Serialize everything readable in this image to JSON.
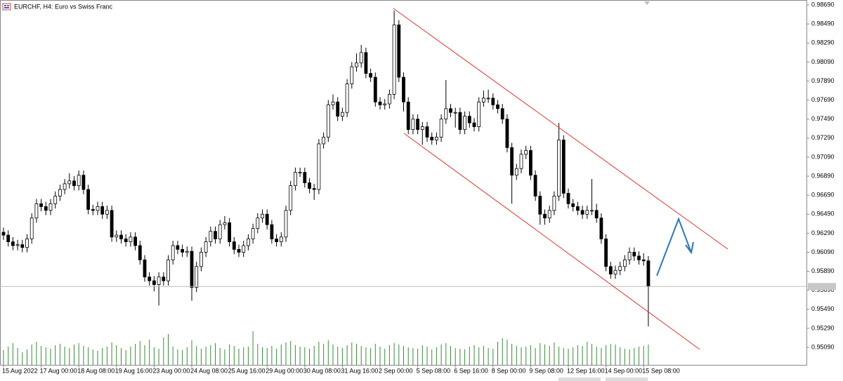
{
  "chart_data": {
    "type": "candlestick",
    "title": "EURCHF, H4:  Euro vs Swiss Franc",
    "categories": [
      "15 Aug 2022",
      null,
      null,
      null,
      null,
      null,
      null,
      null,
      "17 Aug 00:00",
      null,
      null,
      null,
      null,
      null,
      null,
      null,
      "18 Aug 08:00",
      null,
      null,
      null,
      null,
      null,
      null,
      null,
      "19 Aug 16:00",
      null,
      null,
      null,
      null,
      null,
      null,
      null,
      "23 Aug 00:00",
      null,
      null,
      null,
      null,
      null,
      null,
      null,
      "24 Aug 08:00",
      null,
      null,
      null,
      null,
      null,
      null,
      null,
      "25 Aug 16:00",
      null,
      null,
      null,
      null,
      null,
      null,
      null,
      "29 Aug 00:00",
      null,
      null,
      null,
      null,
      null,
      null,
      null,
      "30 Aug 08:00",
      null,
      null,
      null,
      null,
      null,
      null,
      null,
      "31 Aug 16:00",
      null,
      null,
      null,
      null,
      null,
      null,
      null,
      "2 Sep 00:00",
      null,
      null,
      null,
      null,
      null,
      null,
      null,
      "5 Sep 08:00",
      null,
      null,
      null,
      null,
      null,
      null,
      null,
      "6 Sep 16:00",
      null,
      null,
      null,
      null,
      null,
      null,
      null,
      "8 Sep 00:00",
      null,
      null,
      null,
      null,
      null,
      null,
      null,
      "9 Sep 08:00",
      null,
      null,
      null,
      null,
      null,
      null,
      null,
      "12 Sep 16:00",
      null,
      null,
      null,
      null,
      null,
      null,
      null,
      "14 Sep 00:00",
      null,
      null,
      null,
      null,
      null,
      null,
      null,
      "15 Sep 08:00",
      null
    ],
    "open": [
      0.963,
      0.9627,
      0.962,
      0.9616,
      0.9617,
      0.9614,
      0.9623,
      0.9645,
      0.966,
      0.9657,
      0.9653,
      0.966,
      0.9668,
      0.9675,
      0.9681,
      0.9684,
      0.9679,
      0.969,
      0.9675,
      0.9654,
      0.9653,
      0.9657,
      0.9649,
      0.9653,
      0.9625,
      0.9627,
      0.9623,
      0.962,
      0.9625,
      0.9616,
      0.9601,
      0.9583,
      0.9579,
      0.9575,
      0.9583,
      0.9579,
      0.9601,
      0.9616,
      0.9612,
      0.9609,
      0.961,
      0.9572,
      0.9594,
      0.9609,
      0.962,
      0.9631,
      0.9623,
      0.9638,
      0.964,
      0.962,
      0.9612,
      0.9609,
      0.9616,
      0.9623,
      0.9634,
      0.9645,
      0.9649,
      0.9638,
      0.9623,
      0.962,
      0.9625,
      0.9653,
      0.9679,
      0.9693,
      0.9693,
      0.9682,
      0.9676,
      0.9675,
      0.9723,
      0.973,
      0.9764,
      0.9767,
      0.9752,
      0.9756,
      0.9786,
      0.9804,
      0.9808,
      0.9819,
      0.9797,
      0.9793,
      0.9767,
      0.9764,
      0.9765,
      0.9775,
      0.9848,
      0.9793,
      0.9767,
      0.9738,
      0.9749,
      0.9738,
      0.9741,
      0.973,
      0.9727,
      0.973,
      0.9749,
      0.976,
      0.9756,
      0.9756,
      0.9738,
      0.9752,
      0.9745,
      0.9741,
      0.9767,
      0.9771,
      0.9771,
      0.9764,
      0.976,
      0.9749,
      0.9719,
      0.969,
      0.9697,
      0.9712,
      0.9716,
      0.969,
      0.9668,
      0.9649,
      0.9645,
      0.9653,
      0.9668,
      0.9727,
      0.9671,
      0.966,
      0.9657,
      0.9653,
      0.9649,
      0.9653,
      0.9653,
      0.9645,
      0.9623,
      0.9594,
      0.9586,
      0.959,
      0.9594,
      0.9601,
      0.9609,
      0.9605,
      0.9601,
      0.96
    ],
    "high": [
      0.9635,
      0.9632,
      0.9625,
      0.9622,
      0.9622,
      0.9628,
      0.965,
      0.9665,
      0.9665,
      0.9662,
      0.9665,
      0.9673,
      0.968,
      0.9686,
      0.9692,
      0.9689,
      0.9695,
      0.9695,
      0.968,
      0.9659,
      0.9662,
      0.9662,
      0.9658,
      0.9658,
      0.9632,
      0.9632,
      0.9628,
      0.963,
      0.963,
      0.9621,
      0.9606,
      0.9588,
      0.9584,
      0.9588,
      0.9588,
      0.9606,
      0.9621,
      0.9621,
      0.9617,
      0.9615,
      0.9615,
      0.9599,
      0.9614,
      0.9625,
      0.9636,
      0.9636,
      0.9643,
      0.9647,
      0.9645,
      0.9625,
      0.9617,
      0.9621,
      0.9628,
      0.9639,
      0.965,
      0.9654,
      0.9654,
      0.9643,
      0.9628,
      0.963,
      0.9658,
      0.9684,
      0.9698,
      0.9698,
      0.9698,
      0.9687,
      0.9681,
      0.9728,
      0.9735,
      0.9769,
      0.9775,
      0.9772,
      0.9761,
      0.9791,
      0.9809,
      0.9818,
      0.9827,
      0.9824,
      0.9802,
      0.9798,
      0.9772,
      0.977,
      0.978,
      0.9863,
      0.9853,
      0.9798,
      0.9772,
      0.9754,
      0.9754,
      0.9746,
      0.9746,
      0.9735,
      0.9735,
      0.9754,
      0.979,
      0.9765,
      0.9761,
      0.9761,
      0.9757,
      0.9757,
      0.975,
      0.9772,
      0.9779,
      0.978,
      0.9776,
      0.9769,
      0.9765,
      0.9754,
      0.9724,
      0.9702,
      0.9717,
      0.9721,
      0.9721,
      0.9695,
      0.9673,
      0.9654,
      0.9658,
      0.9673,
      0.9745,
      0.9732,
      0.9676,
      0.9665,
      0.9662,
      0.9658,
      0.9658,
      0.9686,
      0.966,
      0.965,
      0.9628,
      0.9599,
      0.9595,
      0.9599,
      0.9606,
      0.9614,
      0.9614,
      0.961,
      0.9608,
      0.9605
    ],
    "low": [
      0.9622,
      0.9615,
      0.9611,
      0.9611,
      0.9609,
      0.9609,
      0.9618,
      0.964,
      0.9652,
      0.9648,
      0.9648,
      0.9655,
      0.9663,
      0.967,
      0.9676,
      0.9674,
      0.9674,
      0.967,
      0.9649,
      0.9648,
      0.9648,
      0.9644,
      0.9644,
      0.962,
      0.962,
      0.9618,
      0.9615,
      0.9615,
      0.9611,
      0.9596,
      0.9578,
      0.9574,
      0.9568,
      0.9553,
      0.9574,
      0.9574,
      0.9596,
      0.9607,
      0.9604,
      0.9604,
      0.9558,
      0.9567,
      0.9589,
      0.9604,
      0.9615,
      0.9618,
      0.9618,
      0.9633,
      0.9615,
      0.9607,
      0.9604,
      0.9604,
      0.9611,
      0.9618,
      0.9629,
      0.964,
      0.9633,
      0.9618,
      0.9615,
      0.9615,
      0.962,
      0.9648,
      0.9674,
      0.9688,
      0.9677,
      0.9671,
      0.9664,
      0.967,
      0.9718,
      0.9725,
      0.9759,
      0.9747,
      0.9747,
      0.9751,
      0.9781,
      0.9799,
      0.9803,
      0.9792,
      0.9788,
      0.9762,
      0.9759,
      0.9759,
      0.976,
      0.977,
      0.9788,
      0.9757,
      0.9733,
      0.9733,
      0.9733,
      0.9722,
      0.9725,
      0.9722,
      0.9722,
      0.9725,
      0.9744,
      0.9751,
      0.974,
      0.9733,
      0.9733,
      0.974,
      0.9736,
      0.9736,
      0.9762,
      0.9766,
      0.9759,
      0.9755,
      0.9744,
      0.9714,
      0.966,
      0.9685,
      0.9692,
      0.9707,
      0.9685,
      0.9663,
      0.9638,
      0.9638,
      0.964,
      0.9648,
      0.9663,
      0.9666,
      0.9655,
      0.9652,
      0.9648,
      0.9644,
      0.9644,
      0.9648,
      0.964,
      0.9618,
      0.9589,
      0.9581,
      0.9581,
      0.9585,
      0.9589,
      0.9596,
      0.96,
      0.9596,
      0.9595,
      0.9531
    ],
    "close": [
      0.9627,
      0.962,
      0.9616,
      0.9617,
      0.9614,
      0.9623,
      0.9645,
      0.966,
      0.9657,
      0.9653,
      0.966,
      0.9668,
      0.9675,
      0.9681,
      0.9684,
      0.9679,
      0.969,
      0.9675,
      0.9654,
      0.9653,
      0.9657,
      0.9649,
      0.9653,
      0.9625,
      0.9627,
      0.9623,
      0.962,
      0.9625,
      0.9616,
      0.9601,
      0.9583,
      0.9579,
      0.9575,
      0.9583,
      0.9579,
      0.9601,
      0.9616,
      0.9612,
      0.9609,
      0.961,
      0.9572,
      0.9594,
      0.9609,
      0.962,
      0.9631,
      0.9623,
      0.9638,
      0.964,
      0.962,
      0.9612,
      0.9609,
      0.9616,
      0.9623,
      0.9634,
      0.9645,
      0.9649,
      0.9638,
      0.9623,
      0.962,
      0.9625,
      0.9653,
      0.9679,
      0.9693,
      0.9693,
      0.9682,
      0.9676,
      0.9675,
      0.9723,
      0.973,
      0.9764,
      0.9767,
      0.9752,
      0.9756,
      0.9786,
      0.9804,
      0.9808,
      0.9819,
      0.9797,
      0.9793,
      0.9767,
      0.9764,
      0.9765,
      0.9775,
      0.9848,
      0.9793,
      0.9767,
      0.9738,
      0.9749,
      0.9738,
      0.9741,
      0.973,
      0.9727,
      0.973,
      0.9749,
      0.976,
      0.9756,
      0.9756,
      0.9738,
      0.9752,
      0.9745,
      0.9741,
      0.9767,
      0.9771,
      0.9771,
      0.9764,
      0.976,
      0.9749,
      0.9719,
      0.969,
      0.9697,
      0.9712,
      0.9716,
      0.969,
      0.9668,
      0.9649,
      0.9645,
      0.9653,
      0.9668,
      0.9727,
      0.9671,
      0.966,
      0.9657,
      0.9653,
      0.9649,
      0.9653,
      0.9653,
      0.9645,
      0.9623,
      0.9594,
      0.9586,
      0.959,
      0.9594,
      0.9601,
      0.9609,
      0.9605,
      0.9601,
      0.96,
      0.9573
    ],
    "volume": [
      2100,
      2600,
      3100,
      2400,
      1800,
      2200,
      2900,
      3300,
      2700,
      2500,
      2300,
      2800,
      3000,
      2600,
      2400,
      2900,
      3100,
      2700,
      2500,
      2200,
      2000,
      2400,
      2600,
      3200,
      2800,
      2400,
      2100,
      2600,
      3000,
      3400,
      2800,
      3600,
      2500,
      2300,
      3900,
      4400,
      2600,
      2200,
      2100,
      2500,
      3500,
      2700,
      2300,
      2600,
      2800,
      3100,
      2400,
      2200,
      2900,
      2700,
      2300,
      2500,
      2600,
      4800,
      3000,
      2500,
      2400,
      2700,
      2300,
      2900,
      3200,
      3400,
      2800,
      2600,
      2500,
      2300,
      2700,
      3300,
      3000,
      3500,
      2900,
      2600,
      2400,
      2800,
      3200,
      3000,
      2700,
      2500,
      2400,
      3000,
      2600,
      2300,
      2800,
      3100,
      2900,
      2700,
      2500,
      2400,
      2300,
      2800,
      2600,
      2200,
      2500,
      2900,
      3100,
      2700,
      2400,
      2300,
      2200,
      2600,
      2800,
      2500,
      2700,
      2400,
      2300,
      3300,
      3800,
      3600,
      3000,
      2700,
      2500,
      2600,
      2800,
      2400,
      3100,
      2900,
      2700,
      3200,
      2600,
      2400,
      2300,
      2500,
      2800,
      2700,
      3300,
      3000,
      2600,
      2400,
      2800,
      3000,
      2900,
      2500,
      2300,
      2200,
      2400,
      2600,
      2700,
      2900
    ],
    "volume_lim": [
      0,
      10000
    ],
    "volume_color": "#3a8a3a",
    "ylim": [
      0.94906,
      0.98742
    ],
    "yticks": [
      {
        "value": 0.9509,
        "label": "0.95090"
      },
      {
        "value": 0.9529,
        "label": "0.95290"
      },
      {
        "value": 0.9549,
        "label": "0.95490"
      },
      {
        "value": 0.9569,
        "label": "0.95690"
      },
      {
        "value": 0.9589,
        "label": "0.95890"
      },
      {
        "value": 0.9609,
        "label": "0.96090"
      },
      {
        "value": 0.9629,
        "label": "0.96290"
      },
      {
        "value": 0.9649,
        "label": "0.96490"
      },
      {
        "value": 0.9669,
        "label": "0.96690"
      },
      {
        "value": 0.9689,
        "label": "0.96890"
      },
      {
        "value": 0.9709,
        "label": "0.97090"
      },
      {
        "value": 0.9729,
        "label": "0.97290"
      },
      {
        "value": 0.9749,
        "label": "0.97490"
      },
      {
        "value": 0.9769,
        "label": "0.97690"
      },
      {
        "value": 0.9789,
        "label": "0.97890"
      },
      {
        "value": 0.9809,
        "label": "0.98090"
      },
      {
        "value": 0.9829,
        "label": "0.98290"
      },
      {
        "value": 0.9849,
        "label": "0.98490"
      },
      {
        "value": 0.9869,
        "label": "0.98690"
      }
    ],
    "grid": false
  }
}
